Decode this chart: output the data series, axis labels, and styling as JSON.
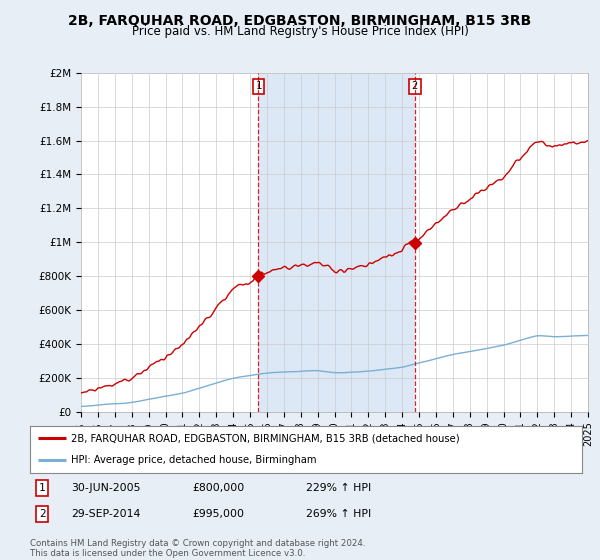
{
  "title": "2B, FARQUHAR ROAD, EDGBASTON, BIRMINGHAM, B15 3RB",
  "subtitle": "Price paid vs. HM Land Registry's House Price Index (HPI)",
  "x_start_year": 1995,
  "x_end_year": 2025,
  "y_min": 0,
  "y_max": 2000000,
  "y_ticks": [
    0,
    200000,
    400000,
    600000,
    800000,
    1000000,
    1200000,
    1400000,
    1600000,
    1800000,
    2000000
  ],
  "y_tick_labels": [
    "£0",
    "£200K",
    "£400K",
    "£600K",
    "£800K",
    "£1M",
    "£1.2M",
    "£1.4M",
    "£1.6M",
    "£1.8M",
    "£2M"
  ],
  "sale1_date": 2005.5,
  "sale1_price": 800000,
  "sale2_date": 2014.75,
  "sale2_price": 995000,
  "marker_color": "#cc0000",
  "hpi_color": "#7bafd4",
  "sale_line_color": "#cc0000",
  "vline_color": "#cc0000",
  "background_color": "#e8eef6",
  "plot_bg_color": "#ffffff",
  "shade_color": "#dce8f5",
  "title_fontsize": 10,
  "subtitle_fontsize": 8.5,
  "tick_fontsize": 7.5,
  "legend_line1": "2B, FARQUHAR ROAD, EDGBASTON, BIRMINGHAM, B15 3RB (detached house)",
  "legend_line2": "HPI: Average price, detached house, Birmingham",
  "footer_text": "Contains HM Land Registry data © Crown copyright and database right 2024.\nThis data is licensed under the Open Government Licence v3.0."
}
